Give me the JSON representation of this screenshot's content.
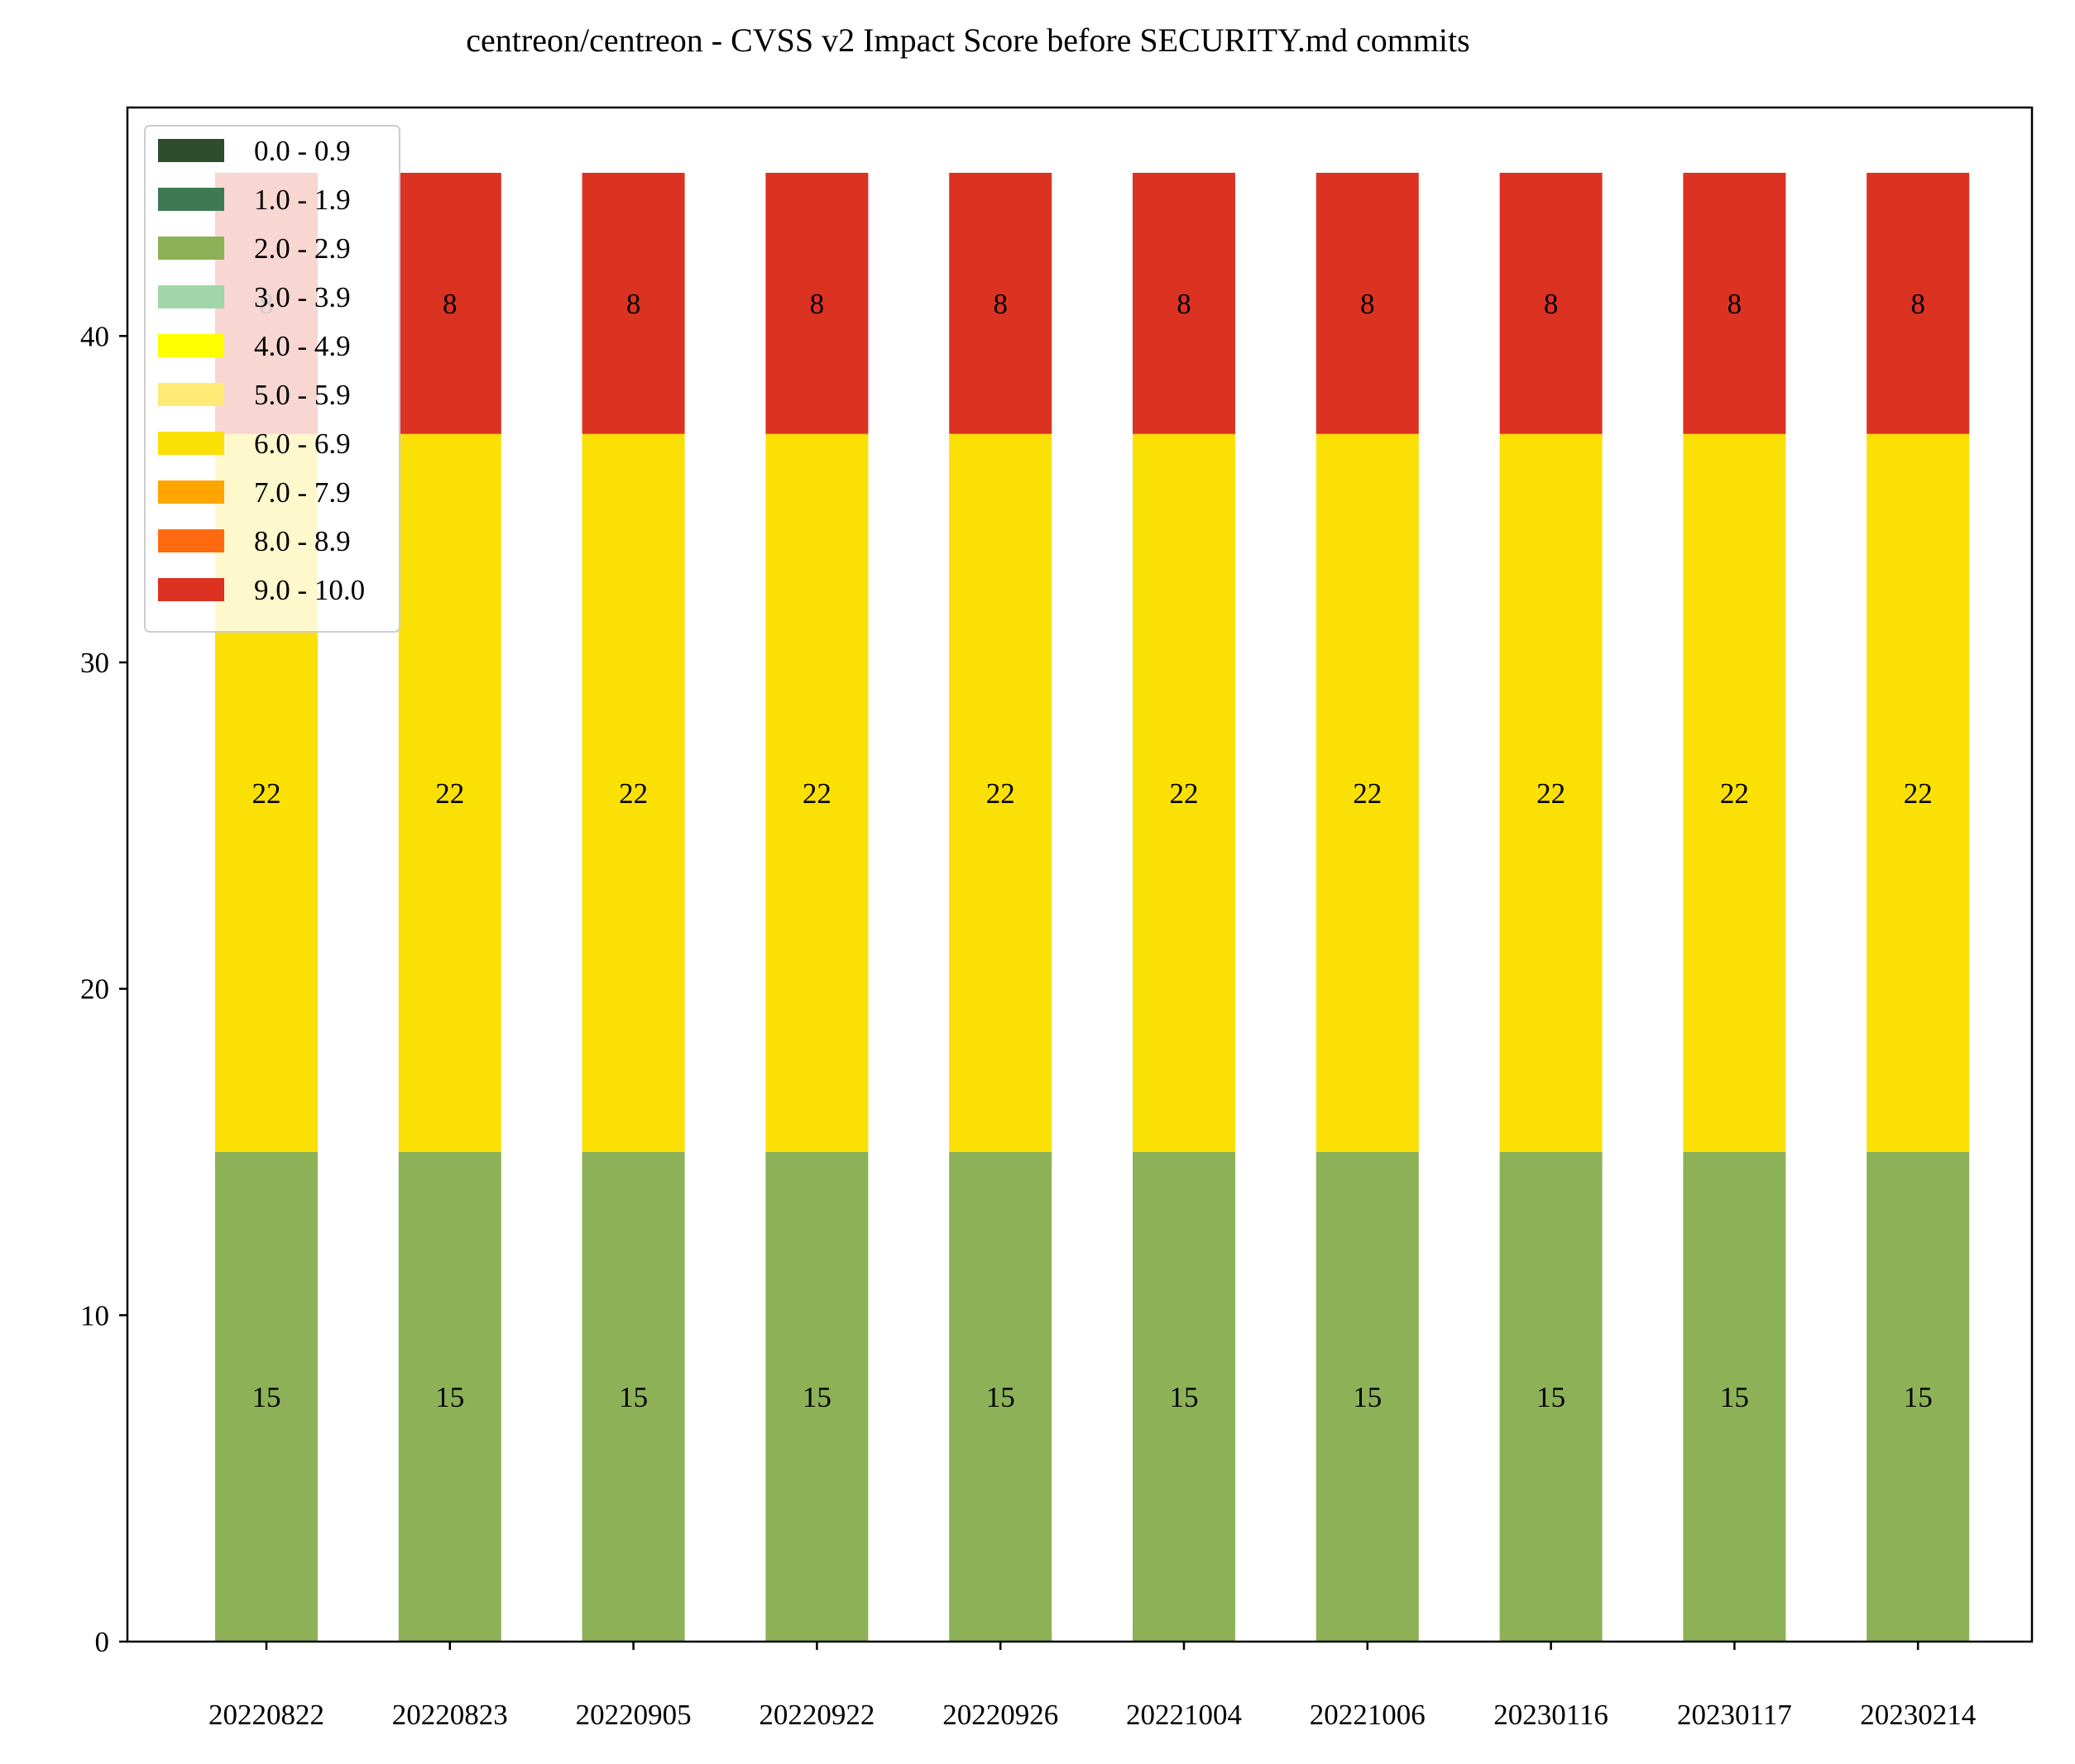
{
  "chart_data": {
    "type": "bar",
    "stacked": true,
    "title": "centreon/centreon - CVSS v2 Impact Score before SECURITY.md commits",
    "xlabel": "",
    "ylabel": "",
    "ylim": [
      0,
      47
    ],
    "yticks": [
      0,
      10,
      20,
      30,
      40
    ],
    "grid": false,
    "legend_position": "upper-left",
    "categories": [
      "20220822",
      "20220823",
      "20220905",
      "20220922",
      "20220926",
      "20221004",
      "20221006",
      "20230116",
      "20230117",
      "20230214"
    ],
    "series": [
      {
        "name": "0.0 - 0.9",
        "color": "#2d4d2d",
        "values": [
          0,
          0,
          0,
          0,
          0,
          0,
          0,
          0,
          0,
          0
        ]
      },
      {
        "name": "1.0 - 1.9",
        "color": "#3d7a54",
        "values": [
          0,
          0,
          0,
          0,
          0,
          0,
          0,
          0,
          0,
          0
        ]
      },
      {
        "name": "2.0 - 2.9",
        "color": "#8db156",
        "values": [
          15,
          15,
          15,
          15,
          15,
          15,
          15,
          15,
          15,
          15
        ]
      },
      {
        "name": "3.0 - 3.9",
        "color": "#a0d6a8",
        "values": [
          0,
          0,
          0,
          0,
          0,
          0,
          0,
          0,
          0,
          0
        ]
      },
      {
        "name": "4.0 - 4.9",
        "color": "#ffff00",
        "values": [
          0,
          0,
          0,
          0,
          0,
          0,
          0,
          0,
          0,
          0
        ]
      },
      {
        "name": "5.0 - 5.9",
        "color": "#ffea75",
        "values": [
          0,
          0,
          0,
          0,
          0,
          0,
          0,
          0,
          0,
          0
        ]
      },
      {
        "name": "6.0 - 6.9",
        "color": "#fbe005",
        "values": [
          22,
          22,
          22,
          22,
          22,
          22,
          22,
          22,
          22,
          22
        ]
      },
      {
        "name": "7.0 - 7.9",
        "color": "#ffa500",
        "values": [
          0,
          0,
          0,
          0,
          0,
          0,
          0,
          0,
          0,
          0
        ]
      },
      {
        "name": "8.0 - 8.9",
        "color": "#ff6a10",
        "values": [
          0,
          0,
          0,
          0,
          0,
          0,
          0,
          0,
          0,
          0
        ]
      },
      {
        "name": "9.0 - 10.0",
        "color": "#dc3222",
        "values": [
          8,
          8,
          8,
          8,
          8,
          8,
          8,
          8,
          8,
          8
        ]
      }
    ]
  }
}
